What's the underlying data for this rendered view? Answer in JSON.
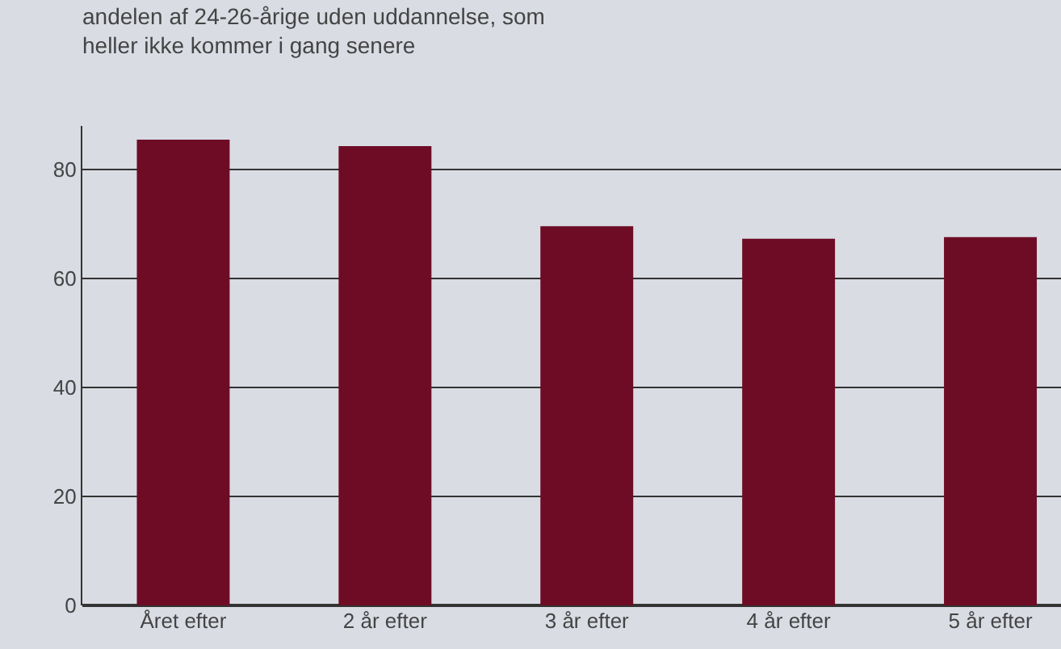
{
  "chart_data": {
    "type": "bar",
    "title": "andelen af 24-26-årige uden uddannelse, som\nheller ikke kommer i gang senere",
    "categories": [
      "Året efter",
      "2 år efter",
      "3 år efter",
      "4 år efter",
      "5 år efter"
    ],
    "values": [
      85.5,
      84.3,
      69.6,
      67.3,
      67.6
    ],
    "color": "#6e0c25",
    "ylim": [
      0,
      88
    ],
    "yticks": [
      0,
      20,
      40,
      60,
      80
    ],
    "grid": "y",
    "legend": false
  }
}
